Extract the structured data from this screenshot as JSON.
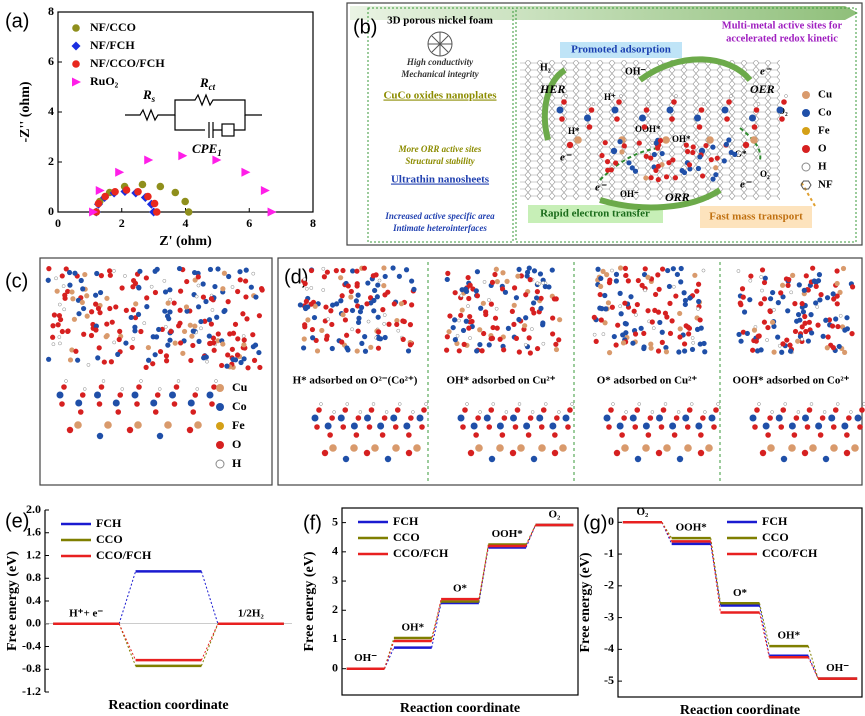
{
  "chart_data": [
    {
      "type": "scatter",
      "panel_label": "(a)",
      "xlabel": "Z' (ohm)",
      "ylabel": "-Z'' (ohm)",
      "xlim": [
        0,
        8
      ],
      "ylim": [
        0,
        8
      ],
      "xticks": [
        0,
        2,
        4,
        6,
        8
      ],
      "yticks": [
        0,
        2,
        4,
        6,
        8
      ],
      "legend": "upper left",
      "frame": true,
      "circuit": [
        {
          "symbol": "R",
          "subscript": "s"
        },
        {
          "symbol": "R",
          "subscript": "ct"
        },
        {
          "symbol": "CPE",
          "subscript": "1"
        }
      ],
      "series": [
        {
          "name": "NF/CCO",
          "color": "#8f8f1c",
          "marker": "circle",
          "x": [
            1.2,
            1.31,
            1.62,
            2.09,
            2.65,
            3.21,
            3.68,
            3.99,
            4.1
          ],
          "values": [
            0,
            0.42,
            0.78,
            1.02,
            1.1,
            1.02,
            0.78,
            0.42,
            0
          ]
        },
        {
          "name": "NF/FCH",
          "color": "#1a2ee0",
          "marker": "diamond",
          "x": [
            1.2,
            1.27,
            1.46,
            1.76,
            2.1,
            2.44,
            2.74,
            2.93,
            3.0
          ],
          "values": [
            0,
            0.31,
            0.58,
            0.76,
            0.82,
            0.76,
            0.58,
            0.31,
            0
          ]
        },
        {
          "name": "NF/CCO/FCH",
          "color": "#e8281e",
          "marker": "circle",
          "x": [
            1.2,
            1.27,
            1.48,
            1.79,
            2.15,
            2.51,
            2.82,
            3.03,
            3.1
          ],
          "values": [
            0,
            0.34,
            0.62,
            0.81,
            0.88,
            0.81,
            0.62,
            0.34,
            0
          ]
        },
        {
          "name": "RuO₂",
          "color": "#ff1ee8",
          "marker": "triangle-right",
          "x": [
            1.1,
            1.31,
            1.92,
            2.83,
            3.9,
            4.97,
            5.88,
            6.49,
            6.7
          ],
          "values": [
            0,
            0.86,
            1.59,
            2.08,
            2.25,
            2.08,
            1.59,
            0.86,
            0
          ]
        }
      ]
    },
    {
      "type": "energy_levels",
      "panel_label": "(e)",
      "xlabel": "Reaction coordinate",
      "ylabel": "Free energy (eV)",
      "ylim": [
        -1.2,
        2.0
      ],
      "yticks": [
        -1.2,
        -0.8,
        -0.4,
        {
          "value": 0,
          "label": "0.0"
        },
        0.4,
        0.8,
        1.2,
        1.6,
        {
          "value": 2,
          "label": "2.0"
        }
      ],
      "categories": [
        "H⁺+ e⁻",
        null,
        "1/2H₂"
      ],
      "legend": "upper left",
      "frame": false,
      "series": [
        {
          "name": "FCH",
          "color": "#1a1ad0",
          "values": [
            0,
            0.92,
            0
          ]
        },
        {
          "name": "CCO",
          "color": "#7f7f00",
          "values": [
            0,
            -0.74,
            0
          ]
        },
        {
          "name": "CCO/FCH",
          "color": "#e82020",
          "values": [
            0,
            -0.64,
            0
          ]
        }
      ]
    },
    {
      "type": "energy_levels",
      "panel_label": "(f)",
      "xlabel": "Reaction coordinate",
      "ylabel": "Free energy (eV)",
      "ylim": [
        -0.9,
        5.5
      ],
      "yticks": [
        0,
        1,
        2,
        3,
        4,
        5
      ],
      "categories": [
        "OH⁻",
        "OH*",
        "O*",
        "OOH*",
        "O₂"
      ],
      "legend": "upper left",
      "frame": true,
      "series": [
        {
          "name": "FCH",
          "color": "#1a1ad0",
          "values": [
            0,
            0.72,
            2.25,
            4.15,
            4.92
          ]
        },
        {
          "name": "CCO",
          "color": "#7f7f00",
          "values": [
            0,
            1.05,
            2.3,
            4.25,
            4.92
          ]
        },
        {
          "name": "CCO/FCH",
          "color": "#e82020",
          "values": [
            0,
            0.95,
            2.38,
            4.2,
            4.92
          ]
        }
      ]
    },
    {
      "type": "energy_levels",
      "panel_label": "(g)",
      "xlabel": "Reaction coordinate",
      "ylabel": "Free energy (eV)",
      "ylim": [
        -5.5,
        0.45
      ],
      "yticks": [
        0,
        -1,
        -2,
        -3,
        -4,
        -5
      ],
      "categories": [
        "O₂",
        "OOH*",
        "O*",
        "OH*",
        "OH⁻"
      ],
      "legend": "upper right",
      "frame": true,
      "series": [
        {
          "name": "FCH",
          "color": "#1a1ad0",
          "values": [
            0,
            -0.68,
            -2.62,
            -4.2,
            -4.92
          ]
        },
        {
          "name": "CCO",
          "color": "#7f7f00",
          "values": [
            0,
            -0.5,
            -2.55,
            -3.9,
            -4.92
          ]
        },
        {
          "name": "CCO/FCH",
          "color": "#e82020",
          "values": [
            0,
            -0.6,
            -2.84,
            -4.25,
            -4.92
          ]
        }
      ]
    }
  ],
  "scheme_b": {
    "panel_label": "(b)",
    "left_column": [
      {
        "title": "3D porous nickel foam",
        "notes": [
          "High conductivity",
          "Mechanical integrity"
        ]
      },
      {
        "title": "CuCo oxides nanoplates",
        "notes": [
          "More ORR active sites",
          "Structural stability"
        ]
      },
      {
        "title": "Ultrathin nanosheets",
        "notes": [
          "Increased active specific area",
          "Intimate heterointerfaces"
        ]
      }
    ],
    "title": [
      "Multi-metal active sites for",
      "accelerated redox kinetic"
    ],
    "boxes": [
      "Promoted adsorption",
      "Rapid electron transfer",
      "Fast mass transport"
    ],
    "reactions": [
      "HER",
      "OER",
      "ORR"
    ],
    "species": [
      "H₂",
      "OH⁻",
      "H*",
      "H⁺",
      "OOH*",
      "OH*",
      "O*",
      "O₂",
      "e⁻"
    ],
    "legend": [
      "Cu",
      "Co",
      "Fe",
      "O",
      "H",
      "NF"
    ]
  },
  "structure_c": {
    "panel_label": "(c)",
    "legend": [
      "Cu",
      "Co",
      "Fe",
      "O",
      "H"
    ]
  },
  "structure_d": {
    "panel_label": "(d)",
    "captions": [
      "H* adsorbed on O²⁻(Co²⁺)",
      "OH* adsorbed on Cu²⁺",
      "O* adsorbed on Cu²⁺",
      "OOH* adsorbed on Co²⁺"
    ]
  }
}
